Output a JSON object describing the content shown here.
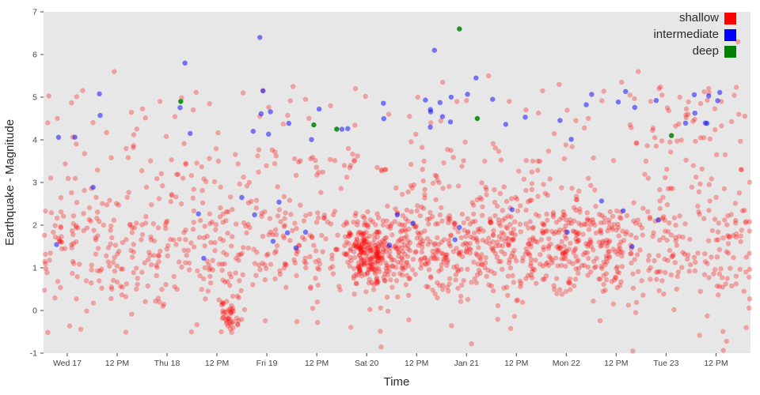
{
  "legend": {
    "items": [
      {
        "label": "shallow",
        "color": "#ff0000"
      },
      {
        "label": "intermediate",
        "color": "#0000ff"
      },
      {
        "label": "deep",
        "color": "#008000"
      }
    ]
  },
  "chart_data": {
    "type": "scatter",
    "title": "",
    "xlabel": "Time",
    "ylabel": "Earthquake - Magnitude",
    "ylim": [
      -1,
      7
    ],
    "x_domain_hours": [
      0,
      170
    ],
    "grid": false,
    "legend_position": "top-right",
    "plot_bg": "#e7e7e7",
    "y_ticks": [
      -1,
      0,
      1,
      2,
      3,
      4,
      5,
      6,
      7
    ],
    "x_ticks": [
      {
        "label": "Wed 17",
        "t": 5.7
      },
      {
        "label": "12 PM",
        "t": 17.7
      },
      {
        "label": "Thu 18",
        "t": 29.7
      },
      {
        "label": "12 PM",
        "t": 41.7
      },
      {
        "label": "Fri 19",
        "t": 53.7
      },
      {
        "label": "12 PM",
        "t": 65.7
      },
      {
        "label": "Sat 20",
        "t": 77.7
      },
      {
        "label": "12 PM",
        "t": 89.7
      },
      {
        "label": "Jan 21",
        "t": 101.7
      },
      {
        "label": "12 PM",
        "t": 113.7
      },
      {
        "label": "Mon 22",
        "t": 125.7
      },
      {
        "label": "12 PM",
        "t": 137.7
      },
      {
        "label": "Tue 23",
        "t": 149.7
      },
      {
        "label": "12 PM",
        "t": 161.7
      }
    ],
    "legend_entries": [
      "shallow",
      "intermediate",
      "deep"
    ],
    "series": [
      {
        "name": "shallow",
        "color": "#ff0000",
        "opacity": 0.3,
        "radius": 3.2,
        "generators": [
          {
            "count": 850,
            "t_range": [
              0,
              170
            ],
            "m_mean": 1.35,
            "m_sd": 0.6
          },
          {
            "count": 300,
            "t_range": [
              80,
              140
            ],
            "m_mean": 1.5,
            "m_sd": 0.45
          },
          {
            "count": 240,
            "t_range": [
              0,
              170
            ],
            "m_range": [
              2.0,
              3.5
            ],
            "pow": 1.6
          },
          {
            "count": 110,
            "t_range": [
              0,
              170
            ],
            "m_range": [
              3.5,
              5.2
            ],
            "pow": 2
          },
          {
            "count": 25,
            "t_range": [
              0,
              170
            ],
            "m_range": [
              -1.0,
              0.3
            ]
          },
          {
            "count": 180,
            "t_mean": 78,
            "t_sd": 2.5,
            "m_mean": 1.3,
            "m_sd": 0.45
          },
          {
            "count": 40,
            "t_mean": 44.5,
            "t_sd": 1.3,
            "m_mean": -0.15,
            "m_sd": 0.2
          },
          {
            "count": 25,
            "t_range": [
              140,
              168
            ],
            "m_range": [
              3.8,
              5.3
            ]
          }
        ],
        "points": [
          [
            1,
            4.4
          ],
          [
            17,
            5.6
          ],
          [
            28,
            4.9
          ],
          [
            36,
            4.7
          ],
          [
            48,
            5.1
          ],
          [
            52,
            4.55
          ],
          [
            60,
            5.25
          ],
          [
            63,
            4.95
          ],
          [
            69,
            4.8
          ],
          [
            75,
            5.2
          ],
          [
            83,
            4.6
          ],
          [
            88,
            4.55
          ],
          [
            90,
            5.0
          ],
          [
            96,
            5.35
          ],
          [
            107,
            5.5
          ],
          [
            112,
            4.9
          ],
          [
            116,
            4.7
          ],
          [
            120,
            5.15
          ],
          [
            124,
            5.3
          ],
          [
            128,
            4.45
          ],
          [
            131,
            4.5
          ],
          [
            139,
            5.35
          ],
          [
            141,
            5.05
          ],
          [
            143,
            5.6
          ],
          [
            146,
            4.9
          ],
          [
            148,
            5.2
          ],
          [
            150,
            4.75
          ],
          [
            153,
            5.0
          ],
          [
            155,
            4.6
          ],
          [
            158,
            4.85
          ],
          [
            160,
            5.1
          ],
          [
            163,
            4.9
          ],
          [
            167,
            6.3
          ]
        ]
      },
      {
        "name": "intermediate",
        "color": "#0000ff",
        "opacity": 0.5,
        "radius": 3.2,
        "generators": [
          {
            "count": 46,
            "t_range": [
              0,
              168
            ],
            "m_range": [
              4.0,
              5.15
            ]
          },
          {
            "count": 22,
            "t_range": [
              0,
              168
            ],
            "m_range": [
              1.2,
              2.9
            ]
          }
        ],
        "points": [
          [
            34,
            5.8
          ],
          [
            52,
            6.4
          ],
          [
            94,
            6.1
          ],
          [
            104,
            5.45
          ]
        ]
      },
      {
        "name": "deep",
        "color": "#008000",
        "opacity": 0.85,
        "radius": 3.2,
        "generators": [],
        "points": [
          [
            33,
            4.9
          ],
          [
            65,
            4.35
          ],
          [
            70.5,
            4.25
          ],
          [
            100,
            6.6
          ],
          [
            104.3,
            4.5
          ],
          [
            151,
            4.1
          ]
        ]
      }
    ]
  }
}
